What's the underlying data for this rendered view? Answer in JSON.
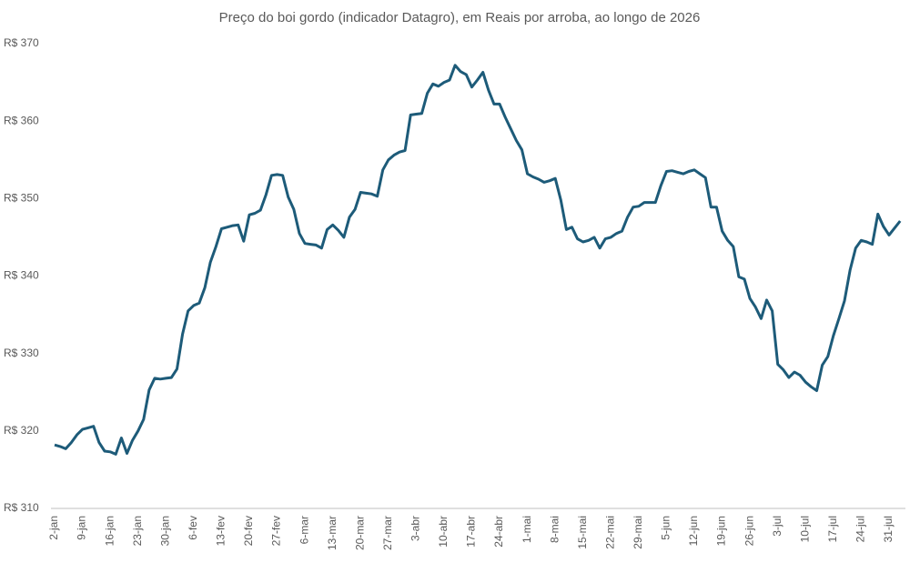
{
  "chart_data": {
    "type": "line",
    "title": "Preço do boi gordo (indicador Datagro), em Reais por arroba, ao longo de 2026",
    "categories": [
      "2-jan",
      null,
      null,
      null,
      null,
      "9-jan",
      null,
      null,
      null,
      null,
      "16-jan",
      null,
      null,
      null,
      null,
      "23-jan",
      null,
      null,
      null,
      null,
      "30-jan",
      null,
      null,
      null,
      null,
      "6-fev",
      null,
      null,
      null,
      null,
      "13-fev",
      null,
      null,
      null,
      null,
      "20-fev",
      null,
      null,
      null,
      null,
      "27-fev",
      null,
      null,
      null,
      null,
      "6-mar",
      null,
      null,
      null,
      null,
      "13-mar",
      null,
      null,
      null,
      null,
      "20-mar",
      null,
      null,
      null,
      null,
      "27-mar",
      null,
      null,
      null,
      null,
      "3-abr",
      null,
      null,
      null,
      null,
      "10-abr",
      null,
      null,
      null,
      null,
      "17-abr",
      null,
      null,
      null,
      null,
      "24-abr",
      null,
      null,
      null,
      null,
      "1-mai",
      null,
      null,
      null,
      null,
      "8-mai",
      null,
      null,
      null,
      null,
      "15-mai",
      null,
      null,
      null,
      null,
      "22-mai",
      null,
      null,
      null,
      null,
      "29-mai",
      null,
      null,
      null,
      null,
      "5-jun",
      null,
      null,
      null,
      null,
      "12-jun",
      null,
      null,
      null,
      null,
      "19-jun",
      null,
      null,
      null,
      null,
      "26-jun",
      null,
      null,
      null,
      null,
      "3-jul",
      null,
      null,
      null,
      null,
      "10-jul",
      null,
      null,
      null,
      null,
      "17-jul",
      null,
      null,
      null,
      null,
      "24-jul",
      null,
      null,
      null,
      null,
      "31-jul",
      null,
      null
    ],
    "series": [
      {
        "name": "Preço",
        "color": "#1d5b79",
        "values": [
          318.2,
          318.0,
          317.7,
          318.5,
          319.5,
          320.2,
          320.4,
          320.6,
          318.5,
          317.4,
          317.3,
          317.0,
          319.1,
          317.1,
          318.8,
          320.0,
          321.5,
          325.3,
          326.8,
          326.7,
          326.8,
          326.9,
          328.0,
          332.5,
          335.5,
          336.2,
          336.5,
          338.5,
          341.8,
          343.8,
          346.1,
          346.3,
          346.5,
          346.6,
          344.5,
          347.9,
          348.1,
          348.5,
          350.5,
          353.0,
          353.1,
          353.0,
          350.2,
          348.6,
          345.5,
          344.2,
          344.1,
          344.0,
          343.6,
          346.0,
          346.6,
          345.9,
          345.0,
          347.6,
          348.6,
          350.8,
          350.7,
          350.6,
          350.3,
          353.7,
          355.0,
          355.6,
          356.0,
          356.2,
          360.8,
          360.9,
          361.0,
          363.6,
          364.8,
          364.5,
          365.0,
          365.3,
          367.2,
          366.4,
          366.0,
          364.4,
          365.3,
          366.3,
          364.0,
          362.2,
          362.2,
          360.5,
          359.0,
          357.5,
          356.3,
          353.2,
          352.8,
          352.5,
          352.1,
          352.3,
          352.6,
          349.8,
          346.0,
          346.3,
          344.8,
          344.4,
          344.6,
          345.0,
          343.6,
          344.8,
          345.0,
          345.5,
          345.8,
          347.6,
          348.9,
          349.0,
          349.5,
          349.5,
          349.5,
          351.7,
          353.5,
          353.6,
          353.4,
          353.2,
          353.5,
          353.7,
          353.2,
          352.7,
          348.9,
          348.9,
          345.8,
          344.6,
          343.8,
          339.9,
          339.6,
          337.1,
          336.0,
          334.5,
          336.9,
          335.5,
          328.6,
          327.9,
          326.9,
          327.6,
          327.2,
          326.3,
          325.7,
          325.2,
          328.5,
          329.6,
          332.3,
          334.5,
          336.8,
          340.8,
          343.6,
          344.6,
          344.4,
          344.1,
          348.0,
          346.4,
          345.3,
          346.2,
          347.1
        ]
      }
    ],
    "ylim": [
      310,
      370
    ],
    "yticks": [
      {
        "value": 310,
        "label": "R$ 310"
      },
      {
        "value": 320,
        "label": "R$ 320"
      },
      {
        "value": 330,
        "label": "R$ 330"
      },
      {
        "value": 340,
        "label": "R$ 340"
      },
      {
        "value": 350,
        "label": "R$ 350"
      },
      {
        "value": 360,
        "label": "R$ 360"
      },
      {
        "value": 370,
        "label": "R$ 370"
      }
    ],
    "grid": false
  }
}
